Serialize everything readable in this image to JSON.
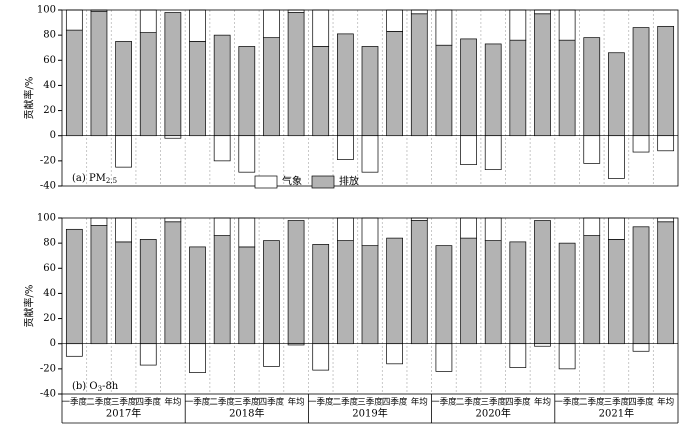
{
  "chart_data": [
    {
      "type": "bar",
      "stacked": true,
      "label_parts": [
        "(a) PM",
        "2.5"
      ],
      "y_label": "贡献率/%",
      "ylim": [
        -40,
        100
      ],
      "yticks": [
        -40,
        -20,
        0,
        20,
        40,
        60,
        80,
        100
      ],
      "series": [
        {
          "name": "气象",
          "color": "#ffffff",
          "values": [
            16,
            1,
            -25,
            18,
            -2,
            25,
            -20,
            -29,
            22,
            2,
            29,
            -19,
            -29,
            17,
            3,
            28,
            -23,
            -27,
            24,
            3,
            24,
            -22,
            -34,
            -13,
            -12
          ]
        },
        {
          "name": "排放",
          "color": "#b3b3b3",
          "values": [
            84,
            99,
            75,
            82,
            98,
            75,
            80,
            71,
            78,
            98,
            71,
            81,
            71,
            83,
            97,
            72,
            77,
            73,
            76,
            97,
            76,
            78,
            66,
            86,
            87
          ]
        }
      ]
    },
    {
      "type": "bar",
      "stacked": true,
      "label_parts": [
        "(b) O",
        "3",
        "-8h"
      ],
      "y_label": "贡献率/%",
      "ylim": [
        -40,
        100
      ],
      "yticks": [
        -40,
        -20,
        0,
        20,
        40,
        60,
        80,
        100
      ],
      "categories": [
        "一季度",
        "二季度",
        "三季度",
        "四季度",
        "年均",
        "一季度",
        "二季度",
        "三季度",
        "四季度",
        "年均",
        "一季度",
        "二季度",
        "三季度",
        "四季度",
        "年均",
        "一季度",
        "二季度",
        "三季度",
        "四季度",
        "年均",
        "一季度",
        "二季度",
        "三季度",
        "四季度",
        "年均"
      ],
      "groups": [
        "2017年",
        "2018年",
        "2019年",
        "2020年",
        "2021年"
      ],
      "series": [
        {
          "color": "#ffffff",
          "values": [
            -10,
            6,
            19,
            -17,
            3,
            -23,
            14,
            23,
            -18,
            -1,
            -21,
            18,
            22,
            -16,
            2,
            -22,
            16,
            18,
            -19,
            -2,
            -20,
            14,
            17,
            -6,
            3
          ]
        },
        {
          "color": "#b3b3b3",
          "values": [
            91,
            94,
            81,
            83,
            97,
            77,
            86,
            77,
            82,
            98,
            79,
            82,
            78,
            84,
            98,
            78,
            84,
            82,
            81,
            98,
            80,
            86,
            83,
            93,
            97
          ]
        }
      ]
    }
  ]
}
